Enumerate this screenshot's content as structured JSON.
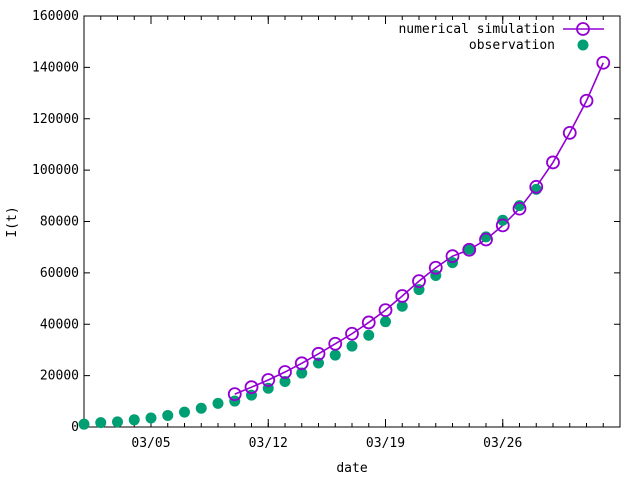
{
  "chart_data": {
    "type": "line",
    "xlabel": "date",
    "ylabel": "I(t)",
    "xlim": [
      "03/01",
      "04/02"
    ],
    "ylim": [
      0,
      160000
    ],
    "y_ticks": [
      0,
      20000,
      40000,
      60000,
      80000,
      100000,
      120000,
      140000,
      160000
    ],
    "x_ticks": [
      "03/05",
      "03/12",
      "03/19",
      "03/26"
    ],
    "grid": false,
    "legend_position": "top-right",
    "series": [
      {
        "name": "numerical simulation",
        "style": "line with open circles",
        "color": "#9400d3",
        "x": [
          "03/10",
          "03/11",
          "03/12",
          "03/13",
          "03/14",
          "03/15",
          "03/16",
          "03/17",
          "03/18",
          "03/19",
          "03/20",
          "03/21",
          "03/22",
          "03/23",
          "03/24",
          "03/25",
          "03/26",
          "03/27",
          "03/28",
          "03/29",
          "03/30",
          "03/31",
          "04/01",
          "04/02"
        ],
        "y": [
          12800,
          15500,
          18300,
          21400,
          24800,
          28500,
          32400,
          36300,
          40700,
          45500,
          51000,
          56800,
          62000,
          66500,
          69000,
          73000,
          78500,
          85000,
          93500,
          103000,
          114500,
          127000,
          141800,
          null
        ]
      },
      {
        "name": "observation",
        "style": "filled circles",
        "color": "#009e73",
        "x": [
          "03/01",
          "03/02",
          "03/03",
          "03/04",
          "03/05",
          "03/06",
          "03/07",
          "03/08",
          "03/09",
          "03/10",
          "03/11",
          "03/12",
          "03/13",
          "03/14",
          "03/15",
          "03/16",
          "03/17",
          "03/18",
          "03/19",
          "03/20",
          "03/21",
          "03/22",
          "03/23",
          "03/24",
          "03/25",
          "03/26",
          "03/27",
          "03/28"
        ],
        "y": [
          1100,
          1700,
          2000,
          2800,
          3500,
          4500,
          5800,
          7300,
          9200,
          10100,
          12400,
          15100,
          17700,
          21000,
          24900,
          28000,
          31500,
          35700,
          41000,
          47000,
          53500,
          59000,
          64000,
          69200,
          74000,
          80500,
          86200,
          92500
        ]
      }
    ]
  }
}
